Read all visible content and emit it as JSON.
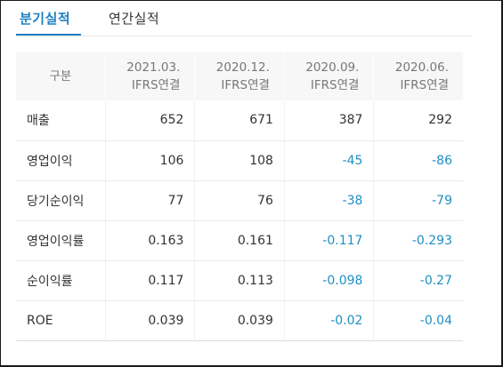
{
  "tabs": [
    {
      "label": "분기실적",
      "active": true
    },
    {
      "label": "연간실적",
      "active": false
    }
  ],
  "table": {
    "header": {
      "label": "구분",
      "periods": [
        {
          "date": "2021.03.",
          "standard": "IFRS연결"
        },
        {
          "date": "2020.12.",
          "standard": "IFRS연결"
        },
        {
          "date": "2020.09.",
          "standard": "IFRS연결"
        },
        {
          "date": "2020.06.",
          "standard": "IFRS연결"
        }
      ]
    },
    "rows": [
      {
        "label": "매출",
        "values": [
          "652",
          "671",
          "387",
          "292"
        ]
      },
      {
        "label": "영업이익",
        "values": [
          "106",
          "108",
          "-45",
          "-86"
        ]
      },
      {
        "label": "당기순이익",
        "values": [
          "77",
          "76",
          "-38",
          "-79"
        ]
      },
      {
        "label": "영업이익률",
        "values": [
          "0.163",
          "0.161",
          "-0.117",
          "-0.293"
        ]
      },
      {
        "label": "순이익률",
        "values": [
          "0.117",
          "0.113",
          "-0.098",
          "-0.27"
        ]
      },
      {
        "label": "ROE",
        "values": [
          "0.039",
          "0.039",
          "-0.02",
          "-0.04"
        ]
      }
    ]
  },
  "colors": {
    "accent": "#1f7fc6",
    "negative": "#1f8fc4",
    "header_bg": "#f7f7f7"
  }
}
